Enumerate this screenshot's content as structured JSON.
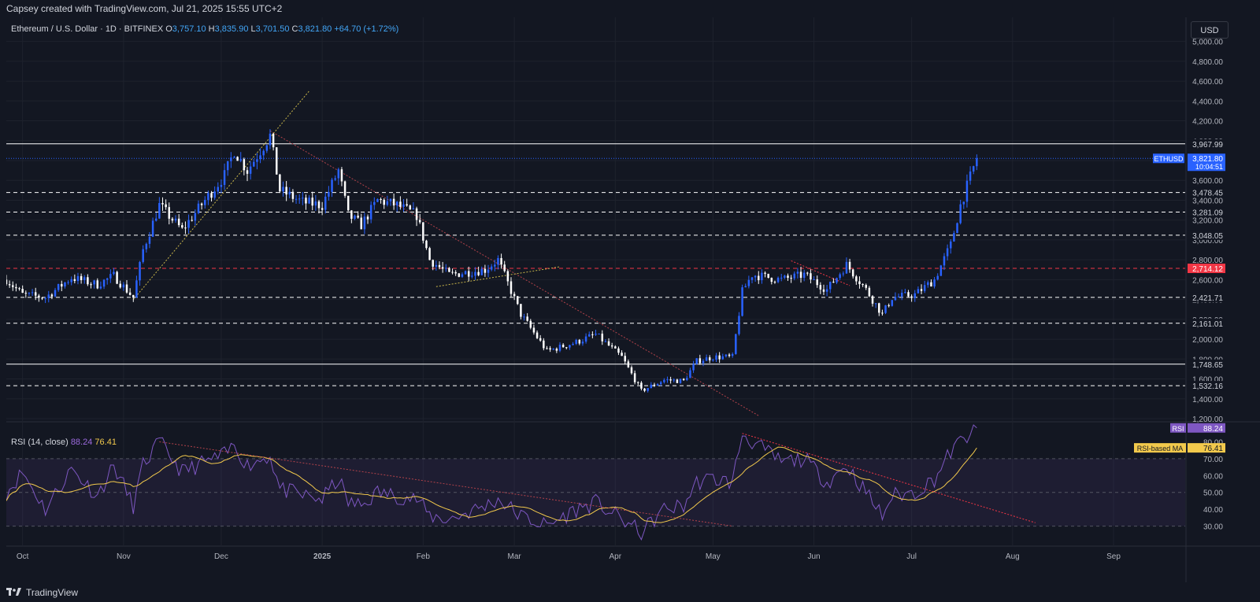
{
  "header": {
    "credit": "Capsey created with TradingView.com, Jul 21, 2025 15:55 UTC+2"
  },
  "legend": {
    "symbol": "Ethereum / U.S. Dollar · 1D · BITFINEX",
    "o_label": "O",
    "o": "3,757.10",
    "h_label": "H",
    "h": "3,835.90",
    "l_label": "L",
    "l": "3,701.50",
    "c_label": "C",
    "c": "3,821.80",
    "change": "+64.70 (+1.72%)"
  },
  "currency_button": "USD",
  "rsi_legend": {
    "title": "RSI (14, close)",
    "rsi": "88.24",
    "ma": "76.41"
  },
  "colors": {
    "background": "#131722",
    "grid": "#1e222d",
    "up": "#2962ff",
    "down": "#ffffff",
    "resistance_red": "#f23645",
    "rsi_line": "#7e57c2",
    "rsi_ma": "#f2c94c",
    "trend": "#b2424a",
    "trend_yellow": "#c9b64a"
  },
  "chart_data": [
    {
      "type": "candlestick",
      "symbol": "ETHUSD",
      "ylim": [
        1200,
        5100
      ],
      "y_ticks": [
        "1,200.00",
        "1,400.00",
        "1,600.00",
        "1,800.00",
        "2,000.00",
        "2,200.00",
        "2,400.00",
        "2,600.00",
        "2,800.00",
        "3,000.00",
        "3,200.00",
        "3,400.00",
        "3,600.00",
        "3,800.00",
        "4,000.00",
        "4,200.00",
        "4,400.00",
        "4,600.00",
        "4,800.00",
        "5,000.00"
      ],
      "x_labels": [
        "Oct",
        "Nov",
        "Dec",
        "2025",
        "Feb",
        "Mar",
        "Apr",
        "May",
        "Jun",
        "Jul",
        "Aug",
        "Sep"
      ],
      "x_start": "2024-09-26",
      "x_end": "2025-09-23",
      "horizontal_levels": [
        {
          "value": 3967.99,
          "label": "3,967.99",
          "style": "solid",
          "color": "#ffffff"
        },
        {
          "value": 3478.45,
          "label": "3,478.45",
          "style": "dashed",
          "color": "#ffffff"
        },
        {
          "value": 3281.09,
          "label": "3,281.09",
          "style": "dashed",
          "color": "#ffffff"
        },
        {
          "value": 3048.05,
          "label": "3,048.05",
          "style": "dashed",
          "color": "#ffffff"
        },
        {
          "value": 2714.12,
          "label": "2,714.12",
          "style": "dashed",
          "color": "#f23645"
        },
        {
          "value": 2421.71,
          "label": "2,421.71",
          "style": "dashed",
          "color": "#ffffff"
        },
        {
          "value": 2161.01,
          "label": "2,161.01",
          "style": "dashed",
          "color": "#ffffff"
        },
        {
          "value": 1748.65,
          "label": "1,748.65",
          "style": "solid",
          "color": "#ffffff"
        },
        {
          "value": 1532.16,
          "label": "1,532.16",
          "style": "dashed",
          "color": "#ffffff"
        }
      ],
      "last_price": {
        "symbol": "ETHUSD",
        "value": 3821.8,
        "label": "3,821.80",
        "countdown": "10:04:51"
      },
      "trendlines": [
        {
          "from": [
            "2024-12-16",
            4100
          ],
          "to": [
            "2025-05-15",
            1230
          ],
          "color": "#b2424a",
          "style": "dotted"
        },
        {
          "from": [
            "2024-11-04",
            2400
          ],
          "to": [
            "2024-12-28",
            4500
          ],
          "color": "#c9b64a",
          "style": "dotted"
        },
        {
          "from": [
            "2025-02-05",
            2530
          ],
          "to": [
            "2025-03-15",
            2730
          ],
          "color": "#c9b64a",
          "style": "dotted"
        },
        {
          "from": [
            "2025-05-25",
            2790
          ],
          "to": [
            "2025-06-12",
            2540
          ],
          "color": "#f23645",
          "style": "dotted"
        }
      ],
      "anchors": [
        [
          "2024-09-26",
          2600
        ],
        [
          "2024-10-01",
          2450
        ],
        [
          "2024-10-08",
          2420
        ],
        [
          "2024-10-16",
          2620
        ],
        [
          "2024-10-24",
          2550
        ],
        [
          "2024-10-29",
          2640
        ],
        [
          "2024-11-04",
          2420
        ],
        [
          "2024-11-07",
          2900
        ],
        [
          "2024-11-12",
          3350
        ],
        [
          "2024-11-19",
          3100
        ],
        [
          "2024-11-26",
          3400
        ],
        [
          "2024-12-02",
          3650
        ],
        [
          "2024-12-05",
          3900
        ],
        [
          "2024-12-09",
          3700
        ],
        [
          "2024-12-16",
          4050
        ],
        [
          "2024-12-19",
          3500
        ],
        [
          "2024-12-26",
          3380
        ],
        [
          "2025-01-01",
          3350
        ],
        [
          "2025-01-06",
          3700
        ],
        [
          "2025-01-09",
          3250
        ],
        [
          "2025-01-13",
          3150
        ],
        [
          "2025-01-18",
          3400
        ],
        [
          "2025-01-24",
          3350
        ],
        [
          "2025-01-30",
          3250
        ],
        [
          "2025-02-03",
          2800
        ],
        [
          "2025-02-09",
          2650
        ],
        [
          "2025-02-20",
          2700
        ],
        [
          "2025-02-24",
          2800
        ],
        [
          "2025-03-03",
          2250
        ],
        [
          "2025-03-11",
          1880
        ],
        [
          "2025-03-20",
          1970
        ],
        [
          "2025-03-26",
          2050
        ],
        [
          "2025-04-03",
          1820
        ],
        [
          "2025-04-09",
          1480
        ],
        [
          "2025-04-16",
          1590
        ],
        [
          "2025-04-22",
          1580
        ],
        [
          "2025-04-26",
          1780
        ],
        [
          "2025-05-01",
          1820
        ],
        [
          "2025-05-07",
          1820
        ],
        [
          "2025-05-10",
          2480
        ],
        [
          "2025-05-13",
          2650
        ],
        [
          "2025-05-22",
          2600
        ],
        [
          "2025-05-29",
          2650
        ],
        [
          "2025-06-05",
          2500
        ],
        [
          "2025-06-11",
          2750
        ],
        [
          "2025-06-17",
          2500
        ],
        [
          "2025-06-22",
          2250
        ],
        [
          "2025-06-25",
          2420
        ],
        [
          "2025-07-02",
          2450
        ],
        [
          "2025-07-08",
          2600
        ],
        [
          "2025-07-13",
          2950
        ],
        [
          "2025-07-16",
          3350
        ],
        [
          "2025-07-21",
          3821.8
        ]
      ]
    },
    {
      "type": "line",
      "title": "RSI (14, close)",
      "series": [
        {
          "name": "RSI",
          "last": 88.24
        },
        {
          "name": "RSI-based MA",
          "last": 76.41
        }
      ],
      "ylim": [
        20,
        90
      ],
      "y_ticks": [
        "30.00",
        "40.00",
        "50.00",
        "60.00",
        "70.00",
        "80.00"
      ],
      "band": [
        30,
        70
      ],
      "rsi_anchors": [
        [
          "2024-09-26",
          50
        ],
        [
          "2024-10-01",
          62
        ],
        [
          "2024-10-08",
          40
        ],
        [
          "2024-10-16",
          64
        ],
        [
          "2024-10-24",
          48
        ],
        [
          "2024-10-29",
          66
        ],
        [
          "2024-11-04",
          42
        ],
        [
          "2024-11-07",
          66
        ],
        [
          "2024-11-12",
          80
        ],
        [
          "2024-11-19",
          62
        ],
        [
          "2024-11-26",
          68
        ],
        [
          "2024-12-02",
          72
        ],
        [
          "2024-12-05",
          78
        ],
        [
          "2024-12-09",
          66
        ],
        [
          "2024-12-16",
          72
        ],
        [
          "2024-12-19",
          52
        ],
        [
          "2024-12-26",
          48
        ],
        [
          "2025-01-01",
          46
        ],
        [
          "2025-01-06",
          58
        ],
        [
          "2025-01-09",
          44
        ],
        [
          "2025-01-13",
          42
        ],
        [
          "2025-01-18",
          50
        ],
        [
          "2025-01-24",
          48
        ],
        [
          "2025-01-30",
          46
        ],
        [
          "2025-02-03",
          36
        ],
        [
          "2025-02-09",
          34
        ],
        [
          "2025-02-20",
          42
        ],
        [
          "2025-02-24",
          46
        ],
        [
          "2025-03-03",
          36
        ],
        [
          "2025-03-11",
          30
        ],
        [
          "2025-03-20",
          40
        ],
        [
          "2025-03-26",
          44
        ],
        [
          "2025-04-03",
          34
        ],
        [
          "2025-04-09",
          26
        ],
        [
          "2025-04-16",
          40
        ],
        [
          "2025-04-22",
          42
        ],
        [
          "2025-04-26",
          56
        ],
        [
          "2025-05-01",
          58
        ],
        [
          "2025-05-07",
          56
        ],
        [
          "2025-05-10",
          85
        ],
        [
          "2025-05-13",
          80
        ],
        [
          "2025-05-22",
          68
        ],
        [
          "2025-05-29",
          70
        ],
        [
          "2025-06-05",
          56
        ],
        [
          "2025-06-11",
          66
        ],
        [
          "2025-06-17",
          50
        ],
        [
          "2025-06-22",
          36
        ],
        [
          "2025-06-25",
          48
        ],
        [
          "2025-07-02",
          50
        ],
        [
          "2025-07-08",
          58
        ],
        [
          "2025-07-13",
          74
        ],
        [
          "2025-07-16",
          80
        ],
        [
          "2025-07-21",
          88.24
        ]
      ],
      "trendlines": [
        {
          "from": [
            "2024-11-12",
            80
          ],
          "to": [
            "2025-05-07",
            30
          ],
          "color": "#b2424a",
          "style": "dotted"
        },
        {
          "from": [
            "2025-05-10",
            85
          ],
          "to": [
            "2025-08-08",
            32
          ],
          "color": "#f23645",
          "style": "dotted"
        }
      ],
      "labels": {
        "rsi_tag": "RSI",
        "ma_tag": "RSI-based MA"
      }
    }
  ],
  "footer": {
    "brand": "TradingView"
  }
}
